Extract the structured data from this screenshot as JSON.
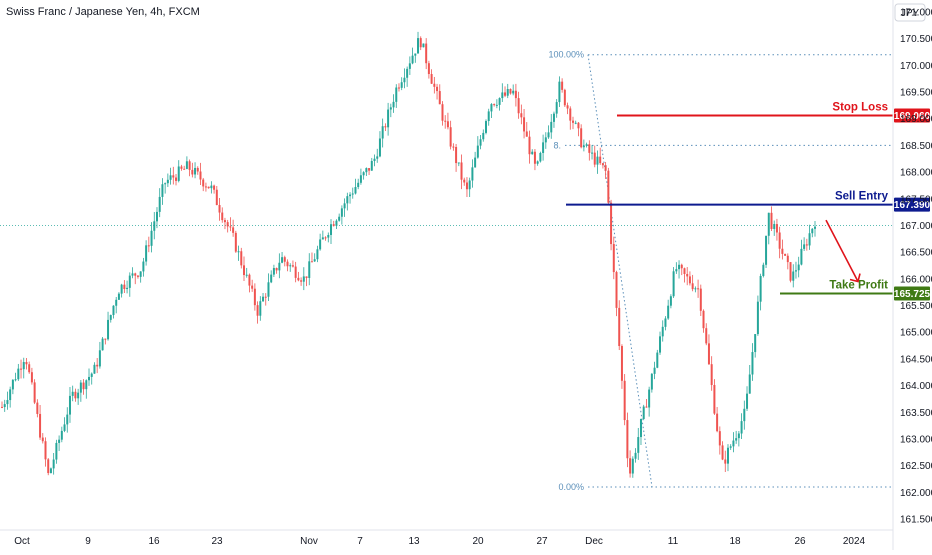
{
  "header": {
    "title": "Swiss Franc / Japanese Yen, 4h, FXCM"
  },
  "colors": {
    "up": "#26a69a",
    "down": "#ef5350",
    "stop_loss": "#e0141b",
    "sell_entry": "#0d1b8f",
    "take_profit": "#3f7a14",
    "fib": "#5b8fb9",
    "arrow": "#e0141b"
  },
  "chart_data": {
    "type": "candlestick",
    "currency_label": "JPY",
    "ylim": [
      161.3,
      171.3
    ],
    "y_ticks": [
      "171.000",
      "170.500",
      "170.000",
      "169.500",
      "169.000",
      "168.500",
      "168.000",
      "167.500",
      "167.000",
      "166.500",
      "166.000",
      "165.500",
      "165.000",
      "164.500",
      "164.000",
      "163.500",
      "163.000",
      "162.500",
      "162.000",
      "161.500"
    ],
    "x_ticks": [
      "Oct",
      "9",
      "16",
      "23",
      "Nov",
      "7",
      "13",
      "20",
      "27",
      "Dec",
      "11",
      "18",
      "26",
      "2024"
    ],
    "last_price": 167.0,
    "trend_points": [
      [
        "Oct",
        163.6
      ],
      [
        "Oct",
        164.6
      ],
      [
        "Oct",
        162.3
      ],
      [
        "9",
        163.8
      ],
      [
        "9",
        164.3
      ],
      [
        "16",
        165.8
      ],
      [
        "16",
        166.2
      ],
      [
        "23",
        167.8
      ],
      [
        "23",
        168.1
      ],
      [
        "23",
        167.7
      ],
      [
        "Nov",
        166.7
      ],
      [
        "Nov",
        165.4
      ],
      [
        "Nov",
        166.4
      ],
      [
        "7",
        166.0
      ],
      [
        "7",
        166.9
      ],
      [
        "13",
        167.6
      ],
      [
        "13",
        168.2
      ],
      [
        "13",
        169.6
      ],
      [
        "13",
        170.5
      ],
      [
        "20",
        169.0
      ],
      [
        "20",
        167.6
      ],
      [
        "27",
        169.3
      ],
      [
        "27",
        169.5
      ],
      [
        "27",
        168.0
      ],
      [
        "Dec",
        169.6
      ],
      [
        "Dec",
        168.5
      ],
      [
        "Dec",
        168.0
      ],
      [
        "Dec",
        162.3
      ],
      [
        "11",
        164.2
      ],
      [
        "11",
        166.2
      ],
      [
        "11",
        165.8
      ],
      [
        "18",
        162.5
      ],
      [
        "18",
        163.5
      ],
      [
        "18",
        167.2
      ],
      [
        "26",
        166.0
      ],
      [
        "26",
        167.1
      ]
    ],
    "annotations": {
      "stop_loss": {
        "label": "Stop Loss",
        "price": 169.06,
        "badge": "169.060"
      },
      "sell_entry": {
        "label": "Sell Entry",
        "price": 167.39,
        "badge": "167.390"
      },
      "take_profit": {
        "label": "Take Profit",
        "price": 165.725,
        "badge": "165.725"
      }
    },
    "fibonacci": {
      "levels": [
        {
          "label": "100.00%",
          "price": 170.2
        },
        {
          "label": "8.",
          "price": 168.5
        },
        {
          "label": "0.00%",
          "price": 162.1
        }
      ]
    }
  }
}
